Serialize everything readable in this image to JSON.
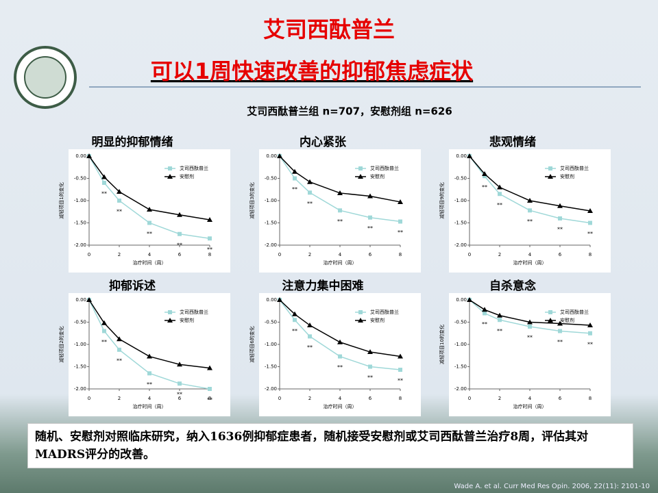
{
  "slide": {
    "title_line1": "艾司西酞普兰",
    "title_part1": "可以1周",
    "title_part2": "快速改善的抑郁焦虑症状",
    "subtitle": "艾司西酞普兰组 n=707，安慰剂组 n=626",
    "summary": "随机、安慰剂对照临床研究，纳入1636例抑郁症患者，随机接受安慰剂或艾司西酞普兰治疗8周，评估其对MADRS评分的改善。",
    "citation": "Wade A. et al. Curr Med Res Opin. 2006, 22(11): 2101-10"
  },
  "chart_data": [
    {
      "type": "line",
      "title": "明显的抑郁情绪",
      "x_label": "治疗时间（周）",
      "y_label": "减轻项目1的变化",
      "x": [
        0,
        1,
        2,
        4,
        6,
        8
      ],
      "xlim": [
        0,
        8
      ],
      "xticks": [
        0,
        2,
        4,
        6,
        8
      ],
      "ylim": [
        -2,
        0
      ],
      "yticks": [
        {
          "value": 0,
          "label": "0.00"
        },
        {
          "value": -0.5,
          "label": "-0.50"
        },
        {
          "value": -1,
          "label": "-1.00"
        },
        {
          "value": -1.5,
          "label": "-1.50"
        },
        {
          "value": -2,
          "label": "-2.00"
        }
      ],
      "significance": [
        null,
        "**",
        "**",
        "**",
        "**",
        "**"
      ],
      "series": [
        {
          "name": "艾司西酞普兰",
          "color": "#9fd8d8",
          "values": [
            0,
            -0.6,
            -1.0,
            -1.5,
            -1.75,
            -1.85
          ]
        },
        {
          "name": "安慰剂",
          "color": "#000000",
          "values": [
            0,
            -0.47,
            -0.8,
            -1.2,
            -1.32,
            -1.43
          ]
        }
      ]
    },
    {
      "type": "line",
      "title": "内心紧张",
      "x_label": "治疗时间（周）",
      "y_label": "减轻项目3的变化",
      "x": [
        0,
        1,
        2,
        4,
        6,
        8
      ],
      "xlim": [
        0,
        8
      ],
      "xticks": [
        0,
        2,
        4,
        6,
        8
      ],
      "ylim": [
        -2,
        0
      ],
      "yticks": [
        {
          "value": 0,
          "label": "0.00"
        },
        {
          "value": -0.5,
          "label": "-0.50"
        },
        {
          "value": -1,
          "label": "-1.00"
        },
        {
          "value": -1.5,
          "label": "-1.50"
        },
        {
          "value": -2,
          "label": "-2.00"
        }
      ],
      "significance": [
        null,
        "**",
        "**",
        "**",
        "**",
        "**"
      ],
      "series": [
        {
          "name": "艾司西酞普兰",
          "color": "#9fd8d8",
          "values": [
            0,
            -0.5,
            -0.82,
            -1.22,
            -1.38,
            -1.47
          ]
        },
        {
          "name": "安慰剂",
          "color": "#000000",
          "values": [
            0,
            -0.35,
            -0.58,
            -0.83,
            -0.9,
            -1.03
          ]
        }
      ]
    },
    {
      "type": "line",
      "title": "悲观情绪",
      "x_label": "治疗时间（周）",
      "y_label": "减轻项目9的变化",
      "x": [
        0,
        1,
        2,
        4,
        6,
        8
      ],
      "xlim": [
        0,
        8
      ],
      "xticks": [
        0,
        2,
        4,
        6,
        8
      ],
      "ylim": [
        -2,
        0
      ],
      "yticks": [
        {
          "value": 0,
          "label": "0.00"
        },
        {
          "value": -0.5,
          "label": "-0.50"
        },
        {
          "value": -1,
          "label": "-1.00"
        },
        {
          "value": -1.5,
          "label": "-1.50"
        },
        {
          "value": -2,
          "label": "-2.00"
        }
      ],
      "significance": [
        null,
        "**",
        "**",
        "**",
        "**",
        "**"
      ],
      "series": [
        {
          "name": "艾司西酞普兰",
          "color": "#9fd8d8",
          "values": [
            0,
            -0.45,
            -0.85,
            -1.22,
            -1.4,
            -1.5
          ]
        },
        {
          "name": "安慰剂",
          "color": "#000000",
          "values": [
            0,
            -0.4,
            -0.7,
            -1.0,
            -1.12,
            -1.23
          ]
        }
      ]
    },
    {
      "type": "line",
      "title": "抑郁诉述",
      "x_label": "治疗时间（周）",
      "y_label": "减轻项目2的变化",
      "x": [
        0,
        1,
        2,
        4,
        6,
        8
      ],
      "xlim": [
        0,
        8
      ],
      "xticks": [
        0,
        2,
        4,
        6,
        8
      ],
      "ylim": [
        -2,
        0
      ],
      "yticks": [
        {
          "value": 0,
          "label": "0.00"
        },
        {
          "value": -0.5,
          "label": "-0.50"
        },
        {
          "value": -1,
          "label": "-1.00"
        },
        {
          "value": -1.5,
          "label": "-1.50"
        },
        {
          "value": -2,
          "label": "-2.00"
        }
      ],
      "significance": [
        null,
        "**",
        "**",
        "**",
        "**",
        "**"
      ],
      "series": [
        {
          "name": "艾司西酞普兰",
          "color": "#9fd8d8",
          "values": [
            0,
            -0.7,
            -1.12,
            -1.65,
            -1.88,
            -2.0
          ]
        },
        {
          "name": "安慰剂",
          "color": "#000000",
          "values": [
            0,
            -0.52,
            -0.88,
            -1.27,
            -1.45,
            -1.53
          ]
        }
      ]
    },
    {
      "type": "line",
      "title": "注意力集中困难",
      "x_label": "治疗时间（周）",
      "y_label": "减轻项目6的变化",
      "x": [
        0,
        1,
        2,
        4,
        6,
        8
      ],
      "xlim": [
        0,
        8
      ],
      "xticks": [
        0,
        2,
        4,
        6,
        8
      ],
      "ylim": [
        -2,
        0
      ],
      "yticks": [
        {
          "value": 0,
          "label": "0.00"
        },
        {
          "value": -0.5,
          "label": "-0.50"
        },
        {
          "value": -1,
          "label": "-1.00"
        },
        {
          "value": -1.5,
          "label": "-1.50"
        },
        {
          "value": -2,
          "label": "-2.00"
        }
      ],
      "significance": [
        null,
        "**",
        "**",
        "**",
        "**",
        "**"
      ],
      "series": [
        {
          "name": "艾司西酞普兰",
          "color": "#9fd8d8",
          "values": [
            0,
            -0.45,
            -0.82,
            -1.27,
            -1.5,
            -1.57
          ]
        },
        {
          "name": "安慰剂",
          "color": "#000000",
          "values": [
            0,
            -0.32,
            -0.57,
            -0.95,
            -1.17,
            -1.27
          ]
        }
      ]
    },
    {
      "type": "line",
      "title": "自杀意念",
      "x_label": "治疗时间（周）",
      "y_label": "减轻项目10的变化",
      "x": [
        0,
        1,
        2,
        4,
        6,
        8
      ],
      "xlim": [
        0,
        8
      ],
      "xticks": [
        0,
        2,
        4,
        6,
        8
      ],
      "ylim": [
        -2,
        0
      ],
      "yticks": [
        {
          "value": 0,
          "label": "0.00"
        },
        {
          "value": -0.5,
          "label": "-0.50"
        },
        {
          "value": -1,
          "label": "-1.00"
        },
        {
          "value": -1.5,
          "label": "-1.50"
        },
        {
          "value": -2,
          "label": "-2.00"
        }
      ],
      "significance": [
        null,
        "**",
        "**",
        "**",
        "**",
        "**"
      ],
      "series": [
        {
          "name": "艾司西酞普兰",
          "color": "#9fd8d8",
          "values": [
            0,
            -0.3,
            -0.45,
            -0.6,
            -0.7,
            -0.75
          ]
        },
        {
          "name": "安慰剂",
          "color": "#000000",
          "values": [
            0,
            -0.22,
            -0.35,
            -0.5,
            -0.53,
            -0.57
          ]
        }
      ]
    }
  ]
}
